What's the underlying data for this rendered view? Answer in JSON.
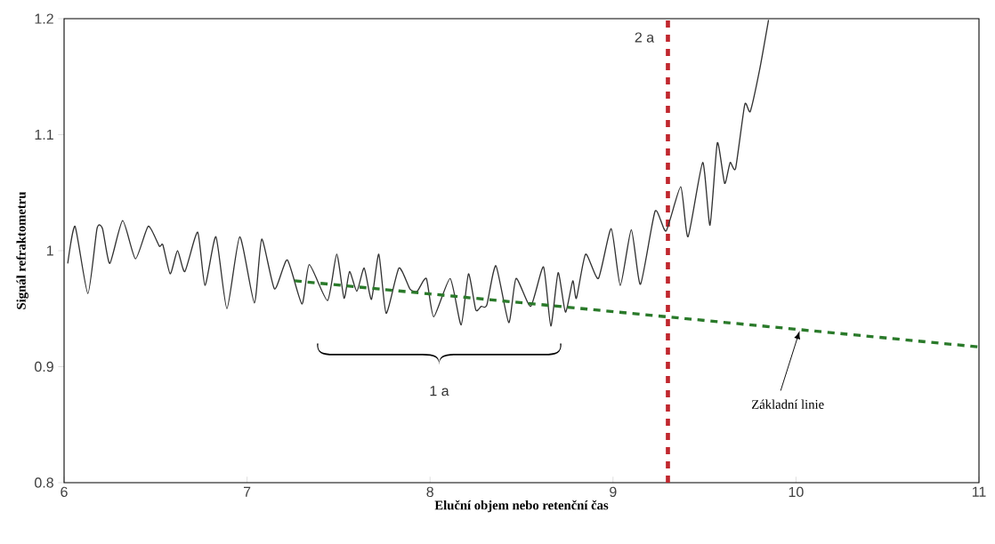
{
  "chart_data": {
    "type": "line",
    "xlabel": "Eluční objem nebo retenční čas",
    "ylabel": "Signál refraktometru",
    "xlim": [
      6,
      11
    ],
    "ylim": [
      0.8,
      1.2
    ],
    "xticks": [
      6,
      7,
      8,
      9,
      10,
      11
    ],
    "yticks": [
      0.8,
      0.9,
      1,
      1.1,
      1.2
    ],
    "series": [
      {
        "color": "#333333",
        "line_style": "solid",
        "x": [
          6.02,
          6.06,
          6.13,
          6.18,
          6.21,
          6.25,
          6.32,
          6.39,
          6.46,
          6.52,
          6.54,
          6.58,
          6.62,
          6.66,
          6.73,
          6.77,
          6.83,
          6.89,
          6.96,
          7.04,
          7.08,
          7.15,
          7.22,
          7.3,
          7.34,
          7.44,
          7.49,
          7.53,
          7.56,
          7.6,
          7.64,
          7.68,
          7.72,
          7.76,
          7.83,
          7.89,
          7.93,
          7.98,
          8.02,
          8.11,
          8.17,
          8.21,
          8.25,
          8.28,
          8.31,
          8.36,
          8.43,
          8.47,
          8.55,
          8.62,
          8.66,
          8.7,
          8.74,
          8.78,
          8.8,
          8.85,
          8.92,
          8.99,
          9.04,
          9.1,
          9.15,
          9.23,
          9.29,
          9.37,
          9.41,
          9.49,
          9.53,
          9.57,
          9.61,
          9.64,
          9.67,
          9.72,
          9.75,
          9.8,
          9.85
        ],
        "values": [
          0.989,
          1.021,
          0.963,
          1.019,
          1.019,
          0.989,
          1.026,
          0.993,
          1.021,
          1.004,
          1.005,
          0.98,
          1.0,
          0.982,
          1.016,
          0.97,
          1.012,
          0.95,
          1.012,
          0.955,
          1.01,
          0.967,
          0.992,
          0.954,
          0.988,
          0.957,
          0.997,
          0.959,
          0.982,
          0.965,
          0.985,
          0.958,
          0.997,
          0.946,
          0.985,
          0.967,
          0.965,
          0.976,
          0.943,
          0.976,
          0.936,
          0.98,
          0.949,
          0.952,
          0.953,
          0.987,
          0.938,
          0.976,
          0.952,
          0.986,
          0.935,
          0.981,
          0.947,
          0.974,
          0.959,
          0.997,
          0.976,
          1.019,
          0.97,
          1.018,
          0.971,
          1.034,
          1.017,
          1.055,
          1.012,
          1.076,
          1.022,
          1.093,
          1.058,
          1.076,
          1.071,
          1.126,
          1.12,
          1.155,
          1.199
        ]
      },
      {
        "color": "#2a7a2a",
        "line_style": "dashed",
        "x": [
          7.26,
          11
        ],
        "values": [
          0.974,
          0.917
        ]
      }
    ],
    "ref_lines": [
      {
        "axis": "x",
        "value": 9.3,
        "label": "2 a",
        "color": "#c0262d",
        "line_style": "dashed"
      }
    ],
    "annotations": [
      "1 a",
      {
        "text": "Základní linie",
        "x": 10.02,
        "y": 0.931
      }
    ]
  }
}
